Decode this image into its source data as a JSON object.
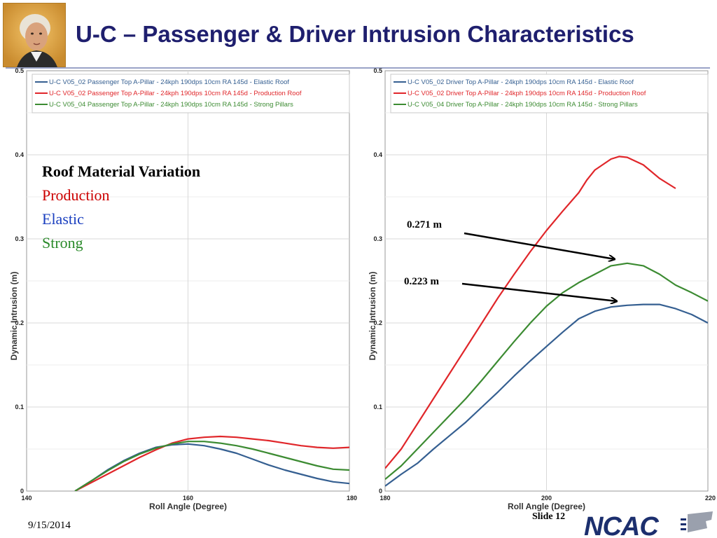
{
  "slide": {
    "title": "U-C – Passenger & Driver Intrusion Characteristics",
    "date": "9/15/2014",
    "slide_number": "Slide 12",
    "logo_text": "NCAC"
  },
  "note": {
    "title": "Roof Material Variation",
    "lines": [
      {
        "text": "Production",
        "color": "#cc0000"
      },
      {
        "text": "Elastic",
        "color": "#1a3fbf"
      },
      {
        "text": "Strong",
        "color": "#2a8a2a"
      }
    ]
  },
  "callouts": [
    {
      "label": "0.271 m"
    },
    {
      "label": "0.223 m"
    }
  ],
  "colors": {
    "elastic": "#355f91",
    "production": "#e0262a",
    "strong": "#3c8b32",
    "grid": "#d8d8d8"
  },
  "chart_data": [
    {
      "type": "line",
      "xlabel": "Roll Angle (Degree)",
      "ylabel": "Dynamic Intrusion (m)",
      "xlim": [
        140,
        180
      ],
      "ylim": [
        0,
        0.5
      ],
      "xticks": [
        "140",
        "160",
        "180"
      ],
      "yticks": [
        "0",
        "0.1",
        "0.2",
        "0.3",
        "0.4",
        "0.5"
      ],
      "grid": true,
      "legend": "top",
      "series": [
        {
          "name": "U-C V05_02  Passenger Top A-Pillar - 24kph 190dps 10cm RA 145d - Elastic Roof",
          "color_key": "elastic",
          "x": [
            146,
            148,
            150,
            152,
            154,
            156,
            158,
            160,
            162,
            164,
            166,
            168,
            170,
            172,
            174,
            176,
            178,
            180
          ],
          "y": [
            0,
            0.012,
            0.025,
            0.036,
            0.045,
            0.052,
            0.055,
            0.056,
            0.054,
            0.05,
            0.045,
            0.038,
            0.031,
            0.025,
            0.02,
            0.015,
            0.011,
            0.009
          ]
        },
        {
          "name": "U-C V05_02  Passenger Top A-Pillar - 24kph 190dps 10cm RA 145d - Production Roof",
          "color_key": "production",
          "x": [
            146,
            148,
            150,
            152,
            154,
            156,
            158,
            160,
            162,
            164,
            166,
            168,
            170,
            172,
            174,
            176,
            178,
            180
          ],
          "y": [
            0,
            0.01,
            0.02,
            0.03,
            0.04,
            0.049,
            0.057,
            0.062,
            0.064,
            0.065,
            0.064,
            0.062,
            0.06,
            0.057,
            0.054,
            0.052,
            0.051,
            0.052
          ]
        },
        {
          "name": "U-C V05_04  Passenger Top A-Pillar - 24kph 190dps 10cm RA 145d - Strong Pillars",
          "color_key": "strong",
          "x": [
            146,
            148,
            150,
            152,
            154,
            156,
            158,
            160,
            162,
            164,
            166,
            168,
            170,
            172,
            174,
            176,
            178,
            180
          ],
          "y": [
            0,
            0.012,
            0.024,
            0.035,
            0.044,
            0.051,
            0.056,
            0.059,
            0.059,
            0.057,
            0.054,
            0.05,
            0.045,
            0.04,
            0.035,
            0.03,
            0.026,
            0.025
          ]
        }
      ]
    },
    {
      "type": "line",
      "xlabel": "Roll Angle (Degree)",
      "ylabel": "Dynamic Intrusion (m)",
      "xlim": [
        180,
        220
      ],
      "ylim": [
        0,
        0.5
      ],
      "xticks": [
        "180",
        "200",
        "220"
      ],
      "yticks": [
        "0",
        "0.1",
        "0.2",
        "0.3",
        "0.4",
        "0.5"
      ],
      "grid": true,
      "legend": "top",
      "series": [
        {
          "name": "U-C V05_02  Driver Top A-Pillar - 24kph 190dps 10cm RA 145d - Elastic Roof",
          "color_key": "elastic",
          "x": [
            180,
            182,
            184,
            186,
            188,
            190,
            192,
            194,
            196,
            198,
            200,
            202,
            204,
            206,
            208,
            210,
            212,
            214,
            216,
            218,
            220
          ],
          "y": [
            0.006,
            0.02,
            0.033,
            0.05,
            0.066,
            0.082,
            0.1,
            0.118,
            0.137,
            0.155,
            0.172,
            0.189,
            0.205,
            0.214,
            0.219,
            0.221,
            0.222,
            0.222,
            0.217,
            0.21,
            0.2
          ]
        },
        {
          "name": "U-C V05_02  Driver Top A-Pillar - 24kph 190dps 10cm RA 145d - Production Roof",
          "color_key": "production",
          "x": [
            180,
            182,
            184,
            186,
            188,
            190,
            192,
            194,
            196,
            198,
            200,
            202,
            204,
            205,
            206,
            208,
            209,
            210,
            212,
            214,
            216
          ],
          "y": [
            0.027,
            0.05,
            0.08,
            0.11,
            0.14,
            0.17,
            0.2,
            0.23,
            0.258,
            0.285,
            0.31,
            0.333,
            0.355,
            0.37,
            0.382,
            0.395,
            0.398,
            0.397,
            0.388,
            0.372,
            0.36
          ]
        },
        {
          "name": "U-C V05_04  Driver Top A-Pillar - 24kph 190dps 10cm RA 145d - Strong Pillars",
          "color_key": "strong",
          "x": [
            180,
            182,
            184,
            186,
            188,
            190,
            192,
            194,
            196,
            198,
            200,
            202,
            204,
            206,
            208,
            210,
            212,
            214,
            216,
            218,
            220
          ],
          "y": [
            0.014,
            0.03,
            0.05,
            0.07,
            0.09,
            0.11,
            0.132,
            0.155,
            0.178,
            0.2,
            0.22,
            0.236,
            0.248,
            0.258,
            0.268,
            0.271,
            0.268,
            0.258,
            0.245,
            0.236,
            0.226
          ]
        }
      ]
    }
  ]
}
